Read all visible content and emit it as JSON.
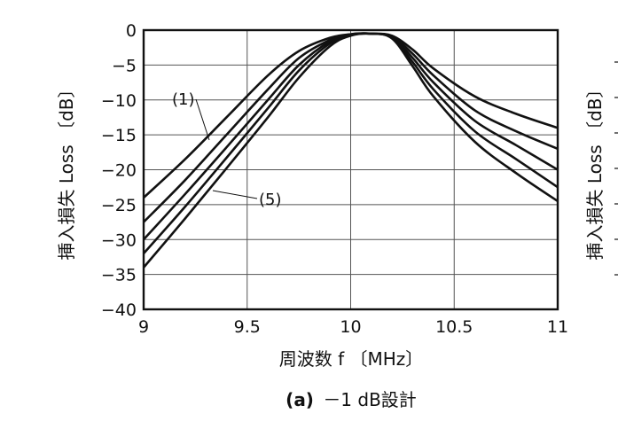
{
  "chart_data": {
    "type": "line",
    "xlabel": "周波数 f 〔MHz〕",
    "ylabel": "挿入損失 Loss 〔dB〕",
    "caption_prefix": "(a)",
    "caption_text": "－1 dB設計",
    "right_ylabel": "挿入損失 Loss 〔dB〕",
    "xlim": [
      9,
      11
    ],
    "ylim": [
      -40,
      0
    ],
    "xticks": [
      9,
      9.5,
      10,
      10.5,
      11
    ],
    "xtick_labels": [
      "9",
      "9.5",
      "10",
      "10.5",
      "11"
    ],
    "yticks": [
      0,
      -5,
      -10,
      -15,
      -20,
      -25,
      -30,
      -35,
      -40
    ],
    "ytick_labels": [
      "0",
      "−5",
      "−10",
      "−15",
      "−20",
      "−25",
      "−30",
      "−35",
      "−40"
    ],
    "grid": true,
    "annotations": [
      {
        "text": "(1)",
        "x": 9.28,
        "y": -16.8
      },
      {
        "text": "(5)",
        "x": 9.35,
        "y": -26.5
      }
    ],
    "series": [
      {
        "x": [
          9.0,
          9.2,
          9.4,
          9.6,
          9.75,
          9.9,
          10.0,
          10.1,
          10.2,
          10.3,
          10.4,
          10.6,
          10.8,
          11.0
        ],
        "values": [
          -24.0,
          -18.5,
          -12.5,
          -6.5,
          -3.0,
          -1.1,
          -0.6,
          -0.5,
          -0.8,
          -2.8,
          -5.5,
          -9.5,
          -12.0,
          -14.0
        ]
      },
      {
        "x": [
          9.0,
          9.2,
          9.4,
          9.6,
          9.75,
          9.9,
          10.0,
          10.1,
          10.2,
          10.3,
          10.4,
          10.6,
          10.8,
          11.0
        ],
        "values": [
          -27.5,
          -21.5,
          -15.0,
          -8.5,
          -4.0,
          -1.4,
          -0.6,
          -0.5,
          -0.9,
          -3.4,
          -6.5,
          -11.5,
          -14.5,
          -17.0
        ]
      },
      {
        "x": [
          9.0,
          9.2,
          9.4,
          9.6,
          9.75,
          9.9,
          10.0,
          10.1,
          10.2,
          10.3,
          10.4,
          10.6,
          10.8,
          11.0
        ],
        "values": [
          -30.0,
          -23.5,
          -16.8,
          -10.0,
          -5.0,
          -1.6,
          -0.6,
          -0.5,
          -1.0,
          -4.0,
          -7.5,
          -13.0,
          -16.5,
          -20.0
        ]
      },
      {
        "x": [
          9.0,
          9.2,
          9.4,
          9.6,
          9.75,
          9.9,
          10.0,
          10.1,
          10.2,
          10.3,
          10.4,
          10.6,
          10.8,
          11.0
        ],
        "values": [
          -32.0,
          -25.3,
          -18.3,
          -11.2,
          -5.8,
          -1.9,
          -0.7,
          -0.5,
          -1.1,
          -4.6,
          -8.5,
          -14.5,
          -18.5,
          -22.5
        ]
      },
      {
        "x": [
          9.0,
          9.2,
          9.4,
          9.6,
          9.75,
          9.9,
          10.0,
          10.1,
          10.2,
          10.3,
          10.4,
          10.6,
          10.8,
          11.0
        ],
        "values": [
          -34.0,
          -27.0,
          -19.8,
          -12.5,
          -6.8,
          -2.3,
          -0.8,
          -0.5,
          -1.2,
          -5.2,
          -9.5,
          -16.0,
          -20.5,
          -24.5
        ]
      }
    ]
  }
}
